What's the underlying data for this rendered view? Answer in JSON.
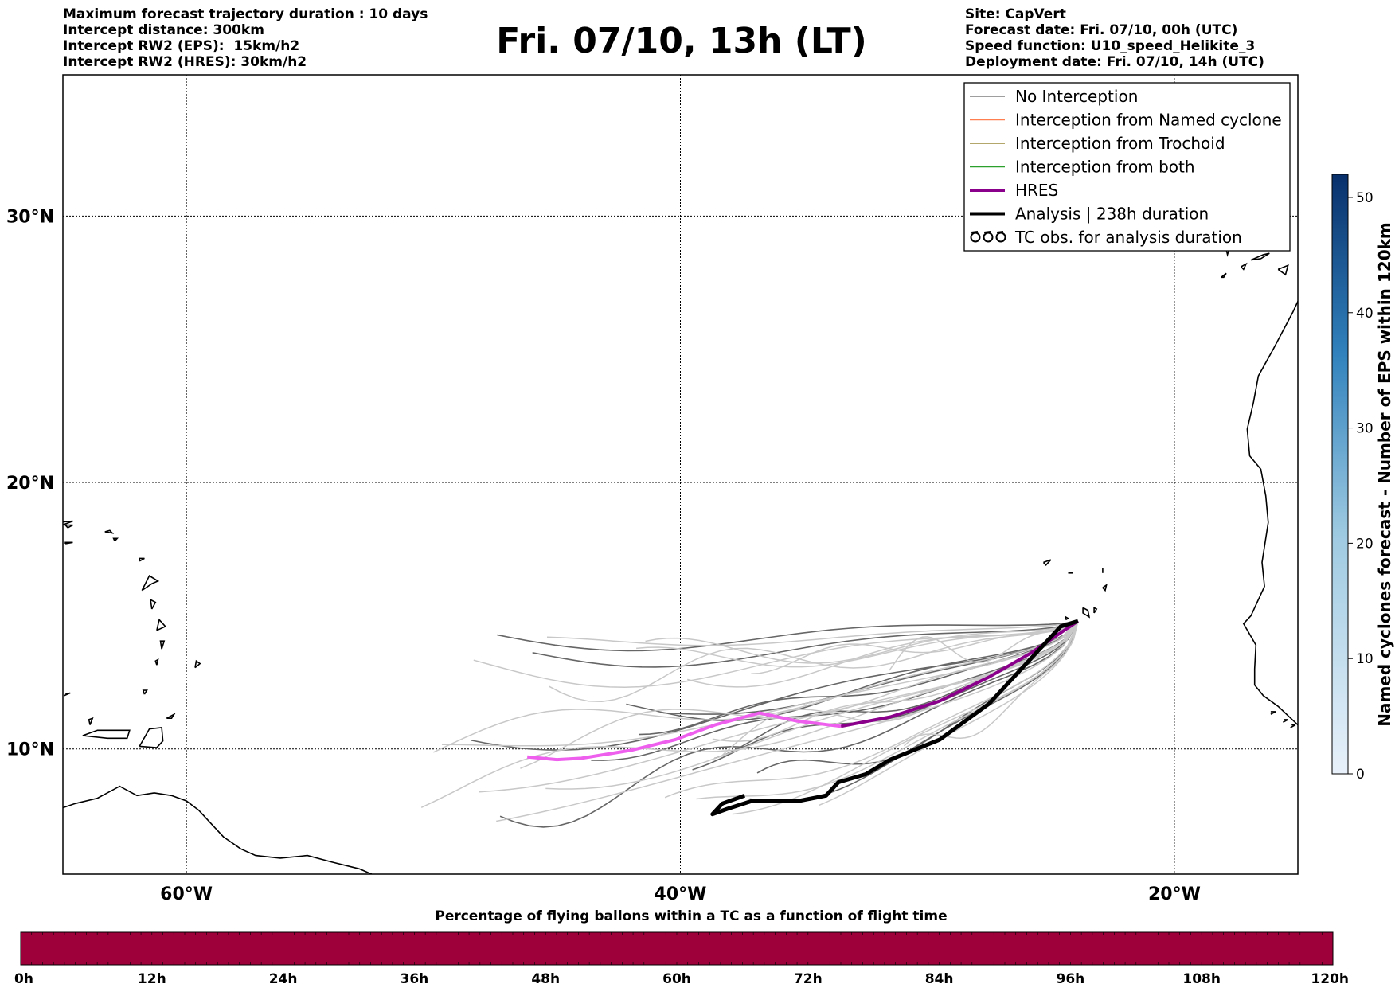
{
  "header": {
    "left_lines": [
      "Maximum forecast trajectory duration : 10 days",
      "Intercept distance: 300km",
      "Intercept RW2 (EPS):  15km/h2",
      "Intercept RW2 (HRES): 30km/h2"
    ],
    "title": "Fri. 07/10, 13h (LT)",
    "right_lines": [
      "Site: CapVert",
      "Forecast date: Fri. 07/10, 00h (UTC)",
      "Speed function: U10_speed_Helikite_3",
      "Deployment date: Fri. 07/10, 14h (UTC)"
    ]
  },
  "map": {
    "lon_range": [
      -65,
      -15
    ],
    "lat_range": [
      5.3,
      35.3
    ],
    "lat_labels": [
      "30°N",
      "20°N",
      "10°N"
    ],
    "lon_labels": [
      "60°W",
      "40°W",
      "20°W"
    ],
    "gridlines": true
  },
  "legend": {
    "placement": "top-right",
    "items": [
      {
        "label": "No Interception",
        "color": "#7f7f7f"
      },
      {
        "label": "Interception from Named cyclone",
        "color": "#ff7f50"
      },
      {
        "label": "Interception from Trochoid",
        "color": "#9a8a3a"
      },
      {
        "label": "Interception from both",
        "color": "#2ca02c"
      },
      {
        "label": "HRES",
        "color": "#8b008b"
      },
      {
        "label": "Analysis | 238h duration",
        "color": "#000000"
      },
      {
        "label": "TC obs. for analysis duration",
        "color": "#000000",
        "icon": "cyclone-symbol-icon"
      }
    ]
  },
  "colorbar_right": {
    "title": "Named cyclones forecast - Number of EPS within 120km",
    "ticks": [
      "0",
      "10",
      "20",
      "30",
      "40",
      "50"
    ],
    "range": [
      0,
      52
    ],
    "color_low": "#e8f1fa",
    "color_high": "#08306b"
  },
  "colorbar_bottom": {
    "title": "Percentage of flying ballons within a TC as a function of flight time",
    "ticks": [
      "0h",
      "12h",
      "24h",
      "36h",
      "48h",
      "60h",
      "72h",
      "84h",
      "96h",
      "108h",
      "120h"
    ],
    "fill_color": "#9e003a"
  },
  "chart_data": {
    "type": "line",
    "x_unit": "longitude (deg, negative = W)",
    "y_unit": "latitude (deg N)",
    "launch_site": {
      "lon": -23.9,
      "lat": 14.8
    },
    "hres_track": {
      "color": "#8b008b",
      "points": [
        [
          -23.9,
          14.8
        ],
        [
          -24.7,
          14.3
        ],
        [
          -25.8,
          13.6
        ],
        [
          -27.5,
          12.7
        ],
        [
          -29.5,
          11.8
        ],
        [
          -31.5,
          11.2
        ],
        [
          -33.5,
          10.85
        ],
        [
          -35.3,
          11.05
        ],
        [
          -36.8,
          11.35
        ],
        [
          -38.6,
          10.9
        ],
        [
          -40.2,
          10.35
        ],
        [
          -42,
          9.95
        ],
        [
          -44,
          9.65
        ],
        [
          -45,
          9.6
        ],
        [
          -46.2,
          9.7
        ]
      ]
    },
    "analysis_track": {
      "color": "#000000",
      "points": [
        [
          -23.9,
          14.8
        ],
        [
          -24.6,
          14.6
        ],
        [
          -25.8,
          13.4
        ],
        [
          -27.5,
          11.7
        ],
        [
          -29.5,
          10.35
        ],
        [
          -31.5,
          9.6
        ],
        [
          -32.5,
          9.05
        ],
        [
          -33.6,
          8.75
        ],
        [
          -34.1,
          8.25
        ],
        [
          -35.2,
          8.05
        ],
        [
          -36.3,
          8.05
        ],
        [
          -37.1,
          8.05
        ],
        [
          -38.1,
          7.75
        ],
        [
          -38.7,
          7.55
        ],
        [
          -38.3,
          7.95
        ],
        [
          -37.4,
          8.25
        ]
      ]
    }
  }
}
